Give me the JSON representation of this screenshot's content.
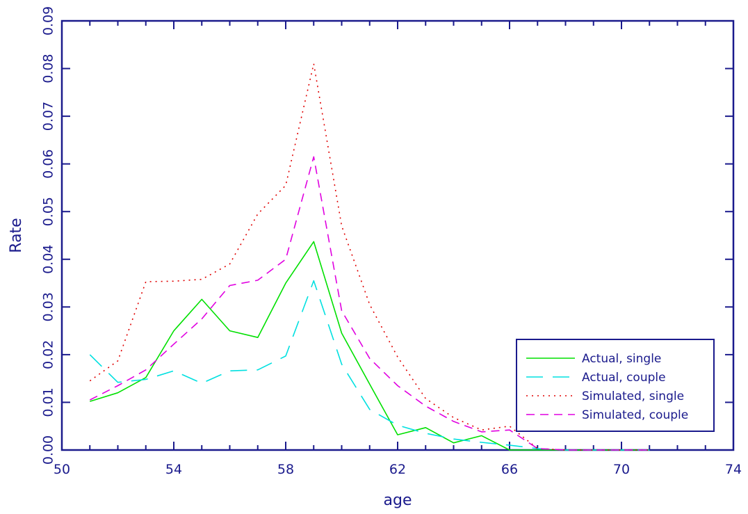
{
  "chart_data": {
    "type": "line",
    "title": "",
    "xlabel": "age",
    "ylabel": "Rate",
    "xlim": [
      50,
      74
    ],
    "ylim": [
      0,
      0.09
    ],
    "xticks": [
      "50",
      "54",
      "58",
      "62",
      "66",
      "70",
      "74"
    ],
    "xtick_values": [
      50,
      54,
      58,
      62,
      66,
      70,
      74
    ],
    "yticks": [
      "0.00",
      "0.01",
      "0.02",
      "0.03",
      "0.04",
      "0.05",
      "0.06",
      "0.07",
      "0.08",
      "0.09"
    ],
    "ytick_values": [
      0,
      0.01,
      0.02,
      0.03,
      0.04,
      0.05,
      0.06,
      0.07,
      0.08,
      0.09
    ],
    "grid": false,
    "legend_position": "bottom-right",
    "axis_color": "#1a1a8c",
    "series": [
      {
        "name": "Actual, single",
        "color": "#00e000",
        "style": "solid",
        "x": [
          51,
          52,
          53,
          54,
          55,
          56,
          57,
          58,
          59,
          60,
          61,
          62,
          63,
          64,
          65,
          66,
          67,
          68,
          69,
          70,
          71
        ],
        "y": [
          0.0102,
          0.012,
          0.0152,
          0.025,
          0.0316,
          0.025,
          0.0236,
          0.035,
          0.0437,
          0.0245,
          0.0138,
          0.0032,
          0.0047,
          0.0015,
          0.003,
          0,
          0,
          0,
          0,
          0,
          0
        ]
      },
      {
        "name": "Actual, couple",
        "color": "#00e0e0",
        "style": "longdash",
        "x": [
          51,
          52,
          53,
          54,
          55,
          56,
          57,
          58,
          59,
          60,
          61,
          62,
          63,
          64,
          65,
          66,
          67,
          68,
          69,
          70,
          71
        ],
        "y": [
          0.02,
          0.0142,
          0.0148,
          0.0166,
          0.014,
          0.0166,
          0.0168,
          0.0197,
          0.0355,
          0.018,
          0.0085,
          0.0052,
          0.0035,
          0.0023,
          0.0016,
          0.001,
          0.0003,
          0,
          0,
          0,
          0
        ]
      },
      {
        "name": "Simulated, single",
        "color": "#e00000",
        "style": "dotted",
        "x": [
          51,
          52,
          53,
          54,
          55,
          56,
          57,
          58,
          59,
          60,
          61,
          62,
          63,
          64,
          65,
          66,
          67,
          68,
          69,
          70,
          71
        ],
        "y": [
          0.0145,
          0.0187,
          0.0353,
          0.0354,
          0.0358,
          0.039,
          0.0495,
          0.0555,
          0.081,
          0.047,
          0.0305,
          0.0195,
          0.0108,
          0.0068,
          0.0042,
          0.005,
          0.0003,
          0,
          0,
          0,
          0
        ]
      },
      {
        "name": "Simulated, couple",
        "color": "#e000e0",
        "style": "dashed",
        "x": [
          51,
          52,
          53,
          54,
          55,
          56,
          57,
          58,
          59,
          60,
          61,
          62,
          63,
          64,
          65,
          66,
          67,
          68,
          69,
          70,
          71
        ],
        "y": [
          0.0105,
          0.0135,
          0.0168,
          0.0222,
          0.0275,
          0.0345,
          0.0356,
          0.04,
          0.0615,
          0.0292,
          0.0192,
          0.0135,
          0.0092,
          0.006,
          0.0038,
          0.0042,
          0.0003,
          0,
          0,
          0,
          0
        ]
      }
    ]
  }
}
